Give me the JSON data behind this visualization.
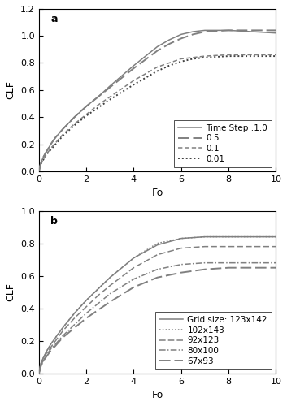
{
  "panel_a": {
    "title": "a",
    "xlabel": "Fo",
    "ylabel": "CLF",
    "xlim": [
      0,
      10
    ],
    "ylim": [
      0.0,
      1.2
    ],
    "yticks": [
      0.0,
      0.2,
      0.4,
      0.6,
      0.8,
      1.0,
      1.2
    ],
    "xticks": [
      0,
      2,
      4,
      6,
      8,
      10
    ],
    "legend_labels": [
      "Time Step :1.0",
      "0.5",
      "0.1",
      "0.01"
    ],
    "curves": {
      "ts10": {
        "x": [
          0,
          0.05,
          0.1,
          0.2,
          0.3,
          0.5,
          0.7,
          1.0,
          1.5,
          2.0,
          2.5,
          3.0,
          4.0,
          5.0,
          5.5,
          6.0,
          6.5,
          7.0,
          8.0,
          9.0,
          10.0
        ],
        "y": [
          0,
          0.04,
          0.07,
          0.11,
          0.14,
          0.2,
          0.25,
          0.31,
          0.4,
          0.48,
          0.55,
          0.63,
          0.78,
          0.92,
          0.97,
          1.01,
          1.03,
          1.04,
          1.04,
          1.03,
          1.02
        ]
      },
      "ts05": {
        "x": [
          0,
          0.05,
          0.1,
          0.2,
          0.3,
          0.5,
          0.7,
          1.0,
          1.5,
          2.0,
          2.5,
          3.0,
          4.0,
          5.0,
          5.5,
          6.0,
          6.5,
          7.0,
          8.0,
          9.0,
          10.0
        ],
        "y": [
          0,
          0.04,
          0.07,
          0.11,
          0.14,
          0.2,
          0.25,
          0.31,
          0.4,
          0.48,
          0.55,
          0.62,
          0.76,
          0.89,
          0.94,
          0.98,
          1.01,
          1.03,
          1.04,
          1.04,
          1.04
        ]
      },
      "ts01": {
        "x": [
          0,
          0.05,
          0.1,
          0.2,
          0.3,
          0.5,
          0.7,
          1.0,
          1.5,
          2.0,
          2.5,
          3.0,
          4.0,
          5.0,
          5.5,
          6.0,
          6.5,
          7.0,
          8.0,
          9.0,
          10.0
        ],
        "y": [
          0,
          0.03,
          0.06,
          0.09,
          0.12,
          0.17,
          0.21,
          0.27,
          0.35,
          0.42,
          0.49,
          0.55,
          0.67,
          0.77,
          0.8,
          0.83,
          0.84,
          0.85,
          0.86,
          0.86,
          0.86
        ]
      },
      "ts001": {
        "x": [
          0,
          0.05,
          0.1,
          0.2,
          0.3,
          0.5,
          0.7,
          1.0,
          1.5,
          2.0,
          2.5,
          3.0,
          4.0,
          5.0,
          5.5,
          6.0,
          6.5,
          7.0,
          8.0,
          9.0,
          10.0
        ],
        "y": [
          0,
          0.03,
          0.06,
          0.09,
          0.12,
          0.16,
          0.2,
          0.26,
          0.34,
          0.41,
          0.47,
          0.53,
          0.64,
          0.74,
          0.78,
          0.81,
          0.83,
          0.84,
          0.85,
          0.85,
          0.85
        ]
      }
    }
  },
  "panel_b": {
    "title": "b",
    "xlabel": "Fo",
    "ylabel": "CLF",
    "xlim": [
      0,
      10
    ],
    "ylim": [
      0.0,
      1.0
    ],
    "yticks": [
      0.0,
      0.2,
      0.4,
      0.6,
      0.8,
      1.0
    ],
    "xticks": [
      0,
      2,
      4,
      6,
      8,
      10
    ],
    "legend_labels": [
      "Grid size: 123x142",
      "102x143",
      "92x123",
      "80x100",
      "67x93"
    ],
    "curves": {
      "g123": {
        "x": [
          0,
          0.05,
          0.1,
          0.2,
          0.3,
          0.5,
          0.7,
          1.0,
          1.5,
          2.0,
          2.5,
          3.0,
          4.0,
          5.0,
          6.0,
          7.0,
          8.0,
          9.0,
          10.0
        ],
        "y": [
          0,
          0.04,
          0.07,
          0.1,
          0.13,
          0.18,
          0.22,
          0.28,
          0.37,
          0.45,
          0.52,
          0.59,
          0.71,
          0.79,
          0.83,
          0.84,
          0.84,
          0.84,
          0.84
        ]
      },
      "g102": {
        "x": [
          0,
          0.05,
          0.1,
          0.2,
          0.3,
          0.5,
          0.7,
          1.0,
          1.5,
          2.0,
          2.5,
          3.0,
          4.0,
          5.0,
          6.0,
          7.0,
          8.0,
          9.0,
          10.0
        ],
        "y": [
          0,
          0.04,
          0.07,
          0.1,
          0.13,
          0.18,
          0.22,
          0.28,
          0.37,
          0.45,
          0.52,
          0.59,
          0.71,
          0.8,
          0.83,
          0.84,
          0.84,
          0.84,
          0.84
        ]
      },
      "g92": {
        "x": [
          0,
          0.05,
          0.1,
          0.2,
          0.3,
          0.5,
          0.7,
          1.0,
          1.5,
          2.0,
          2.5,
          3.0,
          4.0,
          5.0,
          6.0,
          7.0,
          8.0,
          9.0,
          10.0
        ],
        "y": [
          0,
          0.04,
          0.06,
          0.09,
          0.12,
          0.16,
          0.2,
          0.26,
          0.34,
          0.41,
          0.48,
          0.54,
          0.65,
          0.73,
          0.77,
          0.78,
          0.78,
          0.78,
          0.78
        ]
      },
      "g80": {
        "x": [
          0,
          0.05,
          0.1,
          0.2,
          0.3,
          0.5,
          0.7,
          1.0,
          1.5,
          2.0,
          2.5,
          3.0,
          4.0,
          5.0,
          6.0,
          7.0,
          8.0,
          9.0,
          10.0
        ],
        "y": [
          0,
          0.03,
          0.06,
          0.08,
          0.11,
          0.15,
          0.18,
          0.23,
          0.3,
          0.37,
          0.43,
          0.49,
          0.58,
          0.64,
          0.67,
          0.68,
          0.68,
          0.68,
          0.68
        ]
      },
      "g67": {
        "x": [
          0,
          0.05,
          0.1,
          0.2,
          0.3,
          0.5,
          0.7,
          1.0,
          1.5,
          2.0,
          2.5,
          3.0,
          4.0,
          5.0,
          6.0,
          7.0,
          8.0,
          9.0,
          10.0
        ],
        "y": [
          0,
          0.03,
          0.05,
          0.08,
          0.1,
          0.14,
          0.17,
          0.22,
          0.28,
          0.34,
          0.39,
          0.44,
          0.53,
          0.59,
          0.62,
          0.64,
          0.65,
          0.65,
          0.65
        ]
      }
    }
  },
  "line_color": "#808080",
  "line_color_dark": "#404040",
  "background_color": "#ffffff",
  "font_size": 8,
  "label_font_size": 9
}
